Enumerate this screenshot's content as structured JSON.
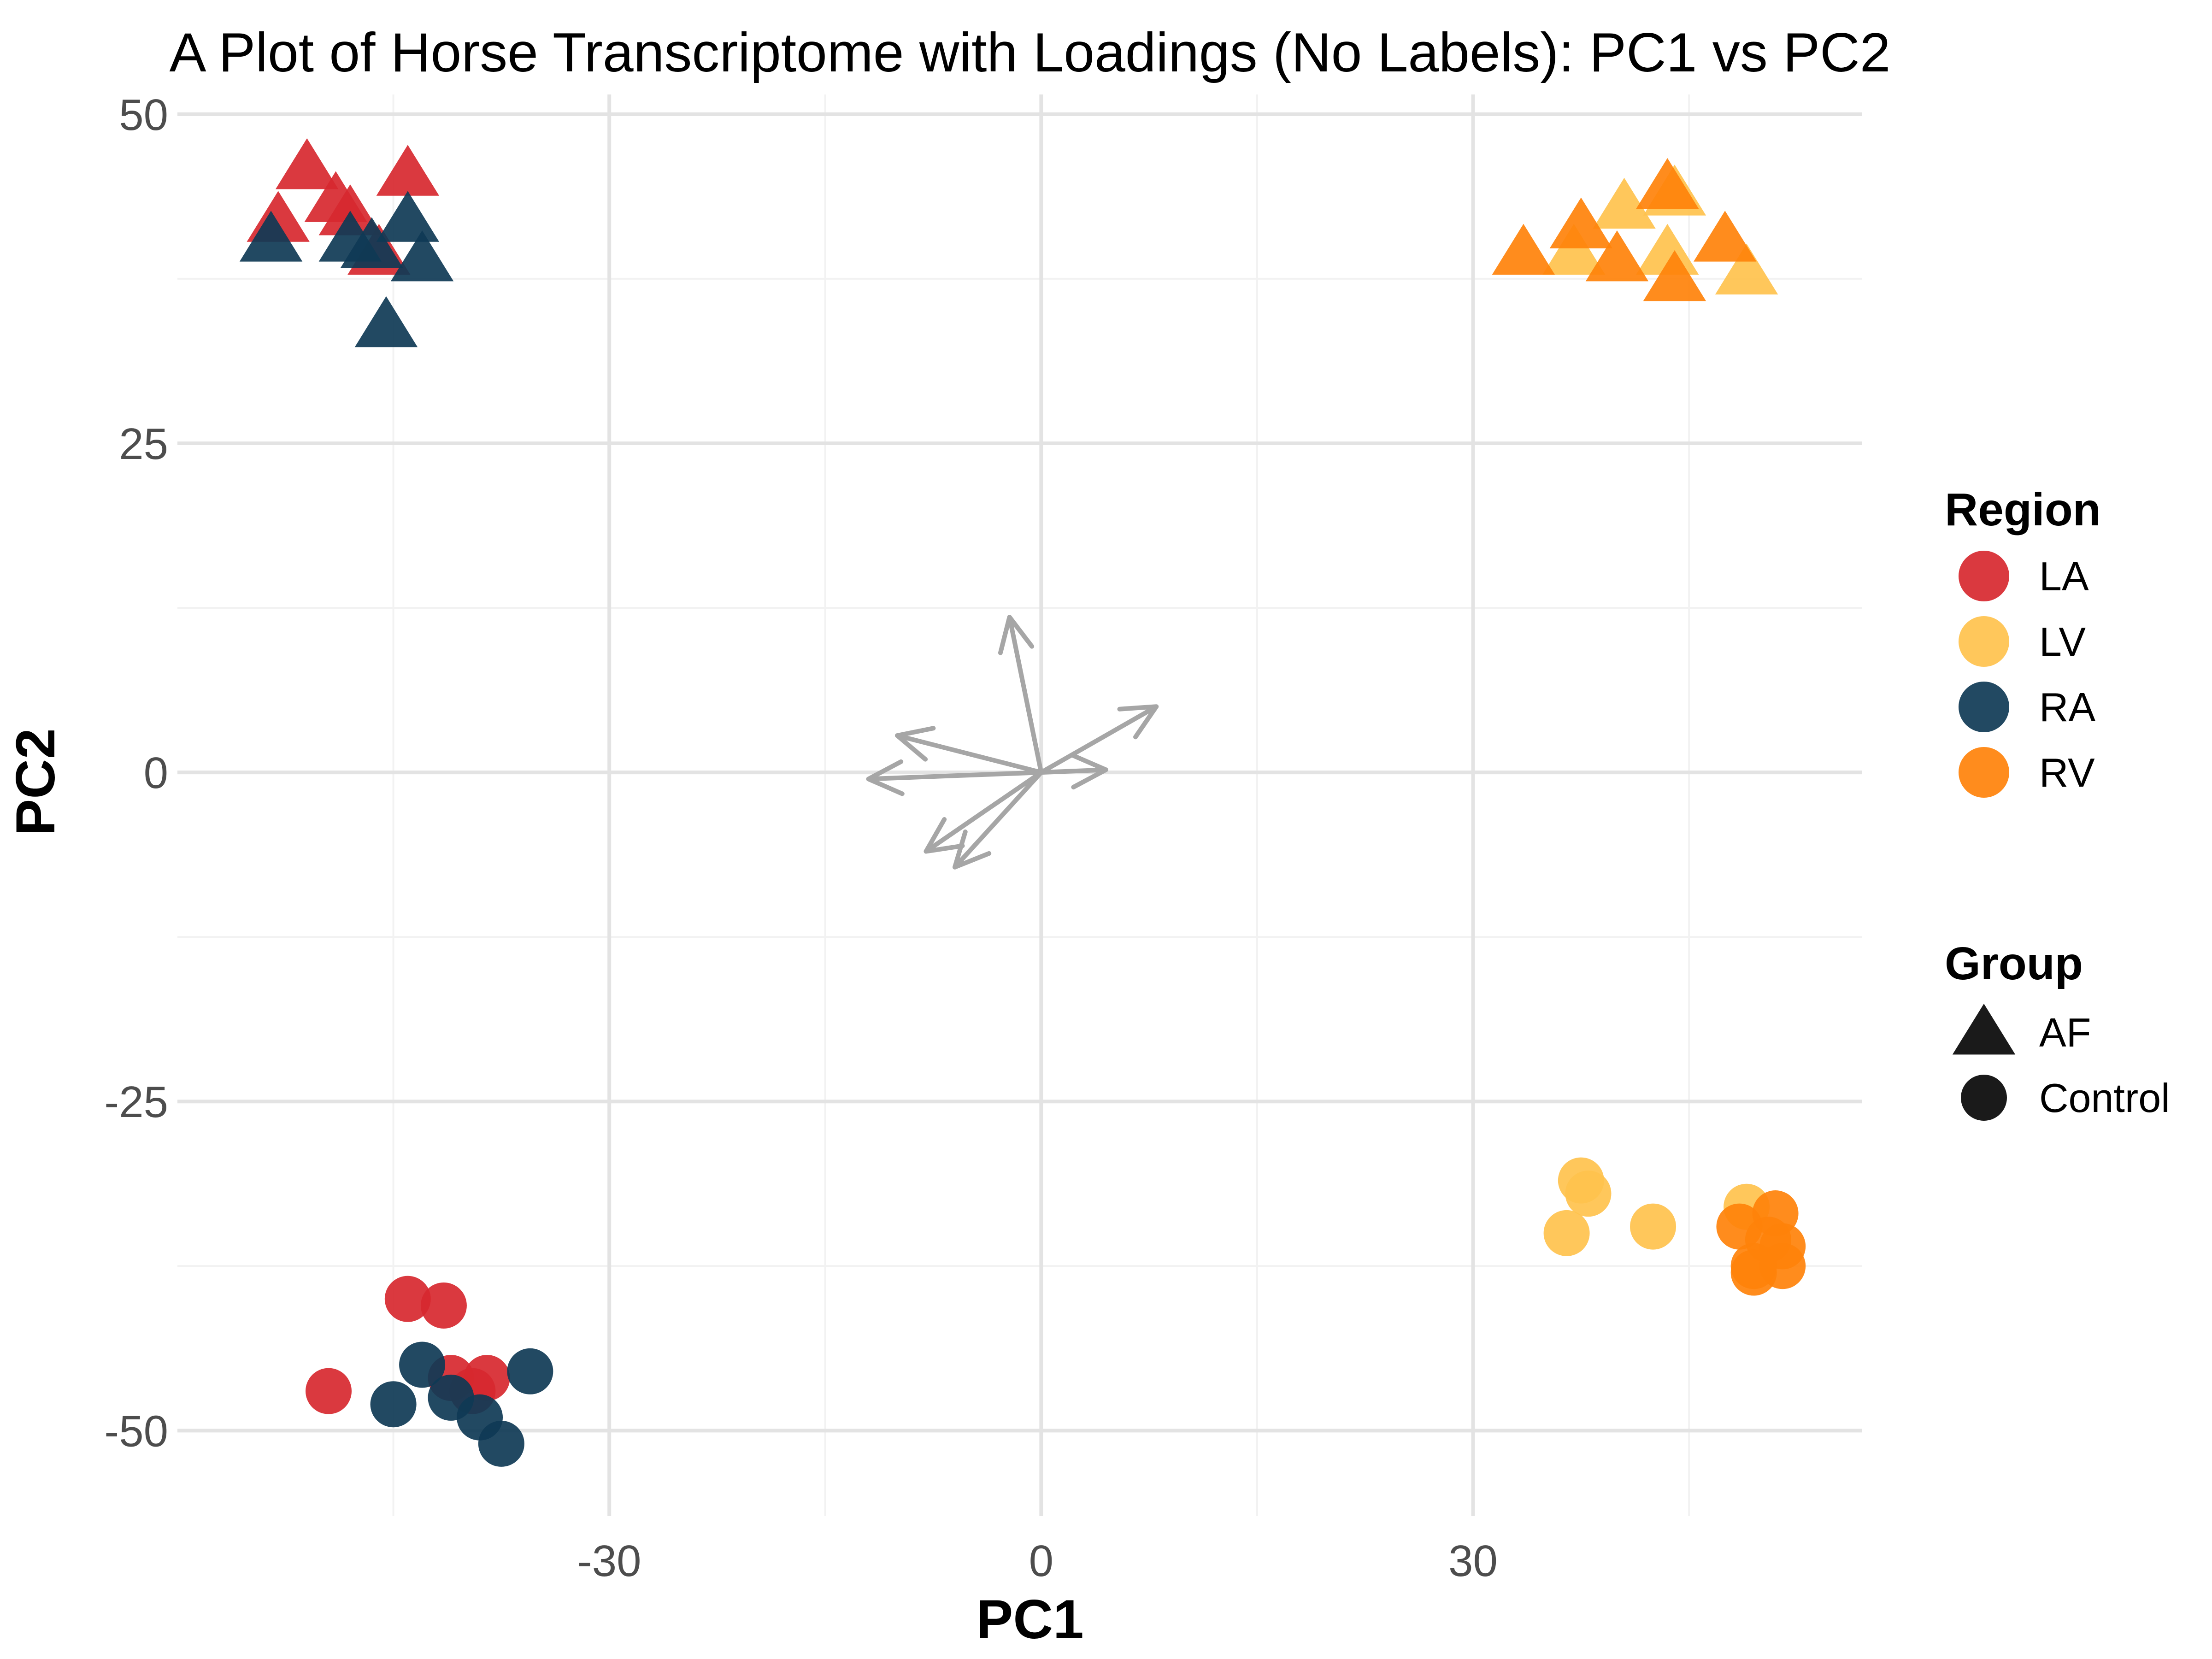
{
  "chart_data": {
    "type": "scatter",
    "title": "A Plot of Horse Transcriptome with Loadings (No Labels): PC1 vs PC2",
    "xlabel": "PC1",
    "ylabel": "PC2",
    "xlim": [
      -60,
      57
    ],
    "ylim": [
      -56.5,
      51.5
    ],
    "x_ticks": [
      -30,
      0,
      30
    ],
    "y_ticks": [
      50,
      25,
      0,
      -25,
      -50
    ],
    "x_tick_labels": [
      "-30",
      "0",
      "30"
    ],
    "y_tick_labels": [
      "50",
      "25",
      "0",
      "-25",
      "-50"
    ],
    "grid": true,
    "legend_position": "right",
    "legends": {
      "region": {
        "title": "Region",
        "entries": [
          {
            "label": "LA",
            "color": "#d7282f"
          },
          {
            "label": "LV",
            "color": "#ffc24d"
          },
          {
            "label": "RA",
            "color": "#0f3a55"
          },
          {
            "label": "RV",
            "color": "#ff820a"
          }
        ]
      },
      "group": {
        "title": "Group",
        "entries": [
          {
            "label": "AF",
            "shape": "triangle"
          },
          {
            "label": "Control",
            "shape": "circle"
          }
        ]
      }
    },
    "series": [
      {
        "region": "LA",
        "group": "AF",
        "color": "#d7282f",
        "shape": "triangle",
        "x": [
          -51,
          -53,
          -49,
          -48,
          -44,
          -46
        ],
        "y": [
          46,
          42,
          43.5,
          42.5,
          45.5,
          39.5
        ]
      },
      {
        "region": "RA",
        "group": "AF",
        "color": "#0f3a55",
        "shape": "triangle",
        "x": [
          -53.5,
          -48,
          -46.5,
          -44,
          -43,
          -45.5
        ],
        "y": [
          40.5,
          40.5,
          40,
          42,
          39,
          34
        ]
      },
      {
        "region": "LV",
        "group": "AF",
        "color": "#ffc24d",
        "shape": "triangle",
        "x": [
          37,
          40.5,
          43.5,
          49,
          44
        ],
        "y": [
          39.5,
          43,
          39.5,
          38,
          44
        ]
      },
      {
        "region": "RV",
        "group": "AF",
        "color": "#ff820a",
        "shape": "triangle",
        "x": [
          33.5,
          37.5,
          40,
          43.5,
          44,
          47.5
        ],
        "y": [
          39.5,
          41.5,
          39,
          44.5,
          37.5,
          40.5
        ]
      },
      {
        "region": "LA",
        "group": "Control",
        "color": "#d7282f",
        "shape": "circle",
        "x": [
          -49.5,
          -44,
          -41.5,
          -41,
          -39.5,
          -38.5
        ],
        "y": [
          -47,
          -40,
          -40.5,
          -46,
          -47,
          -46
        ]
      },
      {
        "region": "RA",
        "group": "Control",
        "color": "#0f3a55",
        "shape": "circle",
        "x": [
          -45,
          -43,
          -41,
          -39,
          -37.5,
          -35.5
        ],
        "y": [
          -48,
          -45,
          -47.5,
          -49,
          -51,
          -45.5
        ]
      },
      {
        "region": "LV",
        "group": "Control",
        "color": "#ffc24d",
        "shape": "circle",
        "x": [
          36.5,
          37.5,
          38,
          42.5,
          49
        ],
        "y": [
          -35,
          -31,
          -32,
          -34.5,
          -33
        ]
      },
      {
        "region": "RV",
        "group": "Control",
        "color": "#ff820a",
        "shape": "circle",
        "x": [
          48.5,
          49.5,
          50.5,
          51,
          51.5,
          49.5,
          51.5
        ],
        "y": [
          -34.5,
          -37.5,
          -35.5,
          -33.5,
          -36,
          -38,
          -37.5
        ]
      }
    ],
    "loadings": {
      "color": "#a6a6a6",
      "x": [
        -2.2,
        8,
        -10,
        -12,
        -8,
        -6,
        4.5
      ],
      "y": [
        11.8,
        5,
        2.8,
        -0.5,
        -6,
        -7.2,
        0.2
      ]
    }
  }
}
